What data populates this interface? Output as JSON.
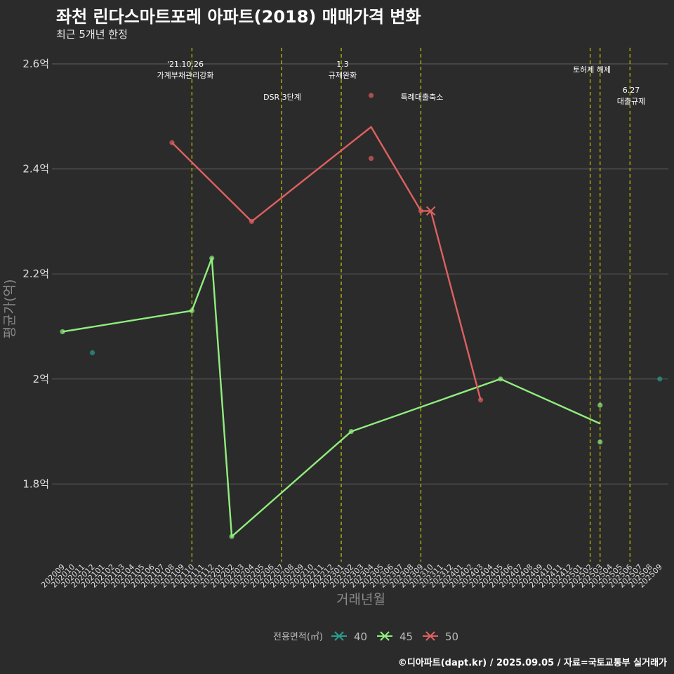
{
  "title": "좌천 린다스마트포레 아파트(2018) 매매가격 변화",
  "subtitle": "최근 5개년 한정",
  "caption": "©디아파트(dapt.kr) / 2025.09.05 / 자료=국토교통부 실거래가",
  "colors": {
    "background": "#2b2b2b",
    "grid": "#555555",
    "event_line": "#c8c800",
    "series_40": "#2a9d8f",
    "series_45": "#90ee7e",
    "series_50": "#e06060"
  },
  "chart_data": {
    "type": "line",
    "xlabel": "거래년월",
    "ylabel": "평균가(억)",
    "ylim": [
      1.66,
      2.64
    ],
    "yticks": [
      {
        "value": 1.8,
        "label": "1.8억"
      },
      {
        "value": 2.0,
        "label": "2억"
      },
      {
        "value": 2.2,
        "label": "2.2억"
      },
      {
        "value": 2.4,
        "label": "2.4억"
      },
      {
        "value": 2.6,
        "label": "2.6억"
      }
    ],
    "categories": [
      "202009",
      "202010",
      "202011",
      "202012",
      "202101",
      "202102",
      "202103",
      "202104",
      "202105",
      "202106",
      "202107",
      "202108",
      "202109",
      "202110",
      "202111",
      "202112",
      "202201",
      "202202",
      "202203",
      "202204",
      "202205",
      "202206",
      "202207",
      "202208",
      "202209",
      "202210",
      "202211",
      "202212",
      "202301",
      "202302",
      "202303",
      "202304",
      "202305",
      "202306",
      "202307",
      "202308",
      "202309",
      "202310",
      "202311",
      "202312",
      "202401",
      "202402",
      "202403",
      "202404",
      "202405",
      "202406",
      "202407",
      "202408",
      "202409",
      "202410",
      "202411",
      "202412",
      "202501",
      "202502",
      "202503",
      "202504",
      "202505",
      "202506",
      "202507",
      "202508",
      "202509"
    ],
    "series": [
      {
        "name": "40",
        "color": "#2a9d8f",
        "line": [],
        "points": [
          {
            "x": "202012",
            "y": 2.05
          },
          {
            "x": "202509",
            "y": 2.0
          }
        ]
      },
      {
        "name": "45",
        "color": "#90ee7e",
        "line": [
          {
            "x": "202009",
            "y": 2.09
          },
          {
            "x": "202110",
            "y": 2.13
          },
          {
            "x": "202112",
            "y": 2.23
          },
          {
            "x": "202202",
            "y": 1.7
          },
          {
            "x": "202302",
            "y": 1.9
          },
          {
            "x": "202405",
            "y": 2.0
          },
          {
            "x": "202503",
            "y": 1.915
          }
        ],
        "points": [
          {
            "x": "202009",
            "y": 2.09
          },
          {
            "x": "202110",
            "y": 2.13
          },
          {
            "x": "202112",
            "y": 2.23
          },
          {
            "x": "202202",
            "y": 1.7
          },
          {
            "x": "202302",
            "y": 1.9
          },
          {
            "x": "202405",
            "y": 2.0
          },
          {
            "x": "202503",
            "y": 1.95
          },
          {
            "x": "202503",
            "y": 1.88
          }
        ]
      },
      {
        "name": "50",
        "color": "#e06060",
        "line": [
          {
            "x": "202108",
            "y": 2.45
          },
          {
            "x": "202204",
            "y": 2.3
          },
          {
            "x": "202304",
            "y": 2.48
          },
          {
            "x": "202309",
            "y": 2.32
          },
          {
            "x": "202310",
            "y": 2.32
          },
          {
            "x": "202403",
            "y": 1.96
          }
        ],
        "points": [
          {
            "x": "202108",
            "y": 2.45
          },
          {
            "x": "202204",
            "y": 2.3
          },
          {
            "x": "202304",
            "y": 2.54
          },
          {
            "x": "202304",
            "y": 2.42
          },
          {
            "x": "202309",
            "y": 2.32
          },
          {
            "x": "202403",
            "y": 1.96
          }
        ],
        "cross_markers": [
          {
            "x": "202310",
            "y": 2.32
          }
        ]
      }
    ],
    "events": [
      {
        "x": "202110",
        "label": "'21.10.26\n가계부채관리강화"
      },
      {
        "x": "202207",
        "label": "DSR 3단계"
      },
      {
        "x": "202301",
        "label": "1.3\n규제완화"
      },
      {
        "x": "202309",
        "label": "특례대출축소"
      },
      {
        "x": "202502",
        "label": "토허제 해제"
      },
      {
        "x": "202503",
        "label": ""
      },
      {
        "x": "202506",
        "label": "6.27\n대출규제"
      }
    ],
    "legend": {
      "title": "전용면적(㎡)",
      "position": "bottom",
      "items": [
        "40",
        "45",
        "50"
      ]
    }
  }
}
